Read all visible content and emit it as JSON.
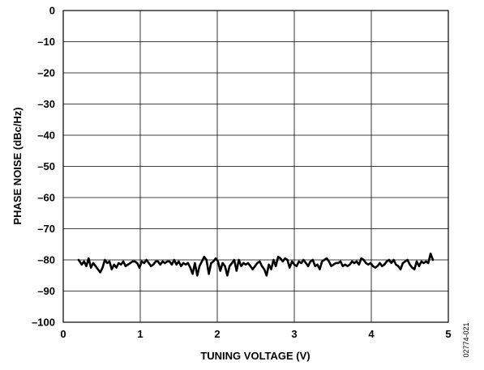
{
  "chart_data": {
    "type": "line",
    "xlabel": "TUNING VOLTAGE (V)",
    "ylabel": "PHASE NOISE (dBc/Hz)",
    "xlim": [
      0,
      5
    ],
    "ylim": [
      -100,
      0
    ],
    "x_ticks": [
      "0",
      "1",
      "2",
      "3",
      "4",
      "5"
    ],
    "y_ticks": [
      "0",
      "–10",
      "–20",
      "–30",
      "–40",
      "–50",
      "–60",
      "–70",
      "–80",
      "–90",
      "–100"
    ],
    "grid": true,
    "figure_id": "02774-021",
    "series": [
      {
        "x": [
          0.2,
          0.24,
          0.27,
          0.3,
          0.33,
          0.36,
          0.39,
          0.42,
          0.45,
          0.48,
          0.51,
          0.54,
          0.57,
          0.6,
          0.63,
          0.66,
          0.69,
          0.72,
          0.75,
          0.78,
          0.81,
          0.84,
          0.87,
          0.9,
          0.93,
          0.96,
          0.99,
          1.02,
          1.05,
          1.08,
          1.11,
          1.14,
          1.17,
          1.2,
          1.23,
          1.26,
          1.29,
          1.32,
          1.35,
          1.38,
          1.41,
          1.44,
          1.47,
          1.5,
          1.53,
          1.56,
          1.59,
          1.62,
          1.65,
          1.68,
          1.71,
          1.74,
          1.77,
          1.8,
          1.83,
          1.86,
          1.89,
          1.92,
          1.95,
          1.98,
          2.01,
          2.04,
          2.07,
          2.1,
          2.13,
          2.16,
          2.19,
          2.22,
          2.25,
          2.28,
          2.31,
          2.34,
          2.37,
          2.4,
          2.43,
          2.46,
          2.49,
          2.52,
          2.55,
          2.58,
          2.61,
          2.64,
          2.67,
          2.7,
          2.73,
          2.76,
          2.79,
          2.82,
          2.85,
          2.88,
          2.91,
          2.94,
          2.97,
          3.0,
          3.03,
          3.06,
          3.09,
          3.12,
          3.15,
          3.18,
          3.21,
          3.24,
          3.27,
          3.3,
          3.33,
          3.36,
          3.39,
          3.42,
          3.45,
          3.48,
          3.51,
          3.54,
          3.57,
          3.6,
          3.63,
          3.66,
          3.69,
          3.72,
          3.75,
          3.78,
          3.81,
          3.84,
          3.87,
          3.9,
          3.93,
          3.96,
          3.99,
          4.02,
          4.05,
          4.08,
          4.11,
          4.14,
          4.17,
          4.2,
          4.23,
          4.26,
          4.29,
          4.32,
          4.35,
          4.38,
          4.41,
          4.44,
          4.47,
          4.5,
          4.53,
          4.56,
          4.59,
          4.62,
          4.65,
          4.68,
          4.71,
          4.74,
          4.77,
          4.8
        ],
        "y": [
          -80,
          -81.5,
          -80.5,
          -82,
          -79.5,
          -82.5,
          -81,
          -82,
          -83,
          -84,
          -82.5,
          -80,
          -81,
          -80.5,
          -83,
          -81.5,
          -82.5,
          -81,
          -81.5,
          -80.5,
          -82,
          -81.5,
          -81,
          -80.5,
          -80.5,
          -81,
          -82.5,
          -80.5,
          -81,
          -80,
          -81,
          -82,
          -81.5,
          -80.5,
          -80.5,
          -81.5,
          -80.5,
          -81,
          -80.5,
          -80.5,
          -81.5,
          -80,
          -81.5,
          -80.5,
          -82,
          -81,
          -81.5,
          -81,
          -82.5,
          -84.5,
          -81,
          -85,
          -82,
          -80.5,
          -79,
          -80,
          -84.5,
          -81,
          -80.5,
          -79.5,
          -80.5,
          -83.5,
          -81,
          -82,
          -85,
          -82,
          -81,
          -80,
          -83.5,
          -80,
          -82,
          -81,
          -81.5,
          -81,
          -82,
          -83,
          -82,
          -81,
          -80.5,
          -82,
          -83,
          -85,
          -81.5,
          -83,
          -80,
          -82,
          -79,
          -79.5,
          -80.5,
          -79.5,
          -80,
          -82.5,
          -80.5,
          -81.5,
          -82,
          -80.5,
          -81,
          -80,
          -81,
          -82,
          -80.5,
          -80,
          -82,
          -81.5,
          -83,
          -80.5,
          -80,
          -79.5,
          -80.5,
          -82,
          -81.5,
          -81,
          -81,
          -80.5,
          -82,
          -81.5,
          -82,
          -81.5,
          -80.5,
          -81,
          -80.5,
          -81.5,
          -79.5,
          -80,
          -81,
          -81.5,
          -81,
          -82,
          -82.5,
          -82,
          -81,
          -82,
          -81.5,
          -80.5,
          -80,
          -81,
          -80,
          -81.5,
          -82,
          -83,
          -81,
          -80.5,
          -80,
          -81.5,
          -82.5,
          -83,
          -80.5,
          -82,
          -80.5,
          -81,
          -80.5,
          -81,
          -78,
          -80
        ]
      }
    ]
  }
}
